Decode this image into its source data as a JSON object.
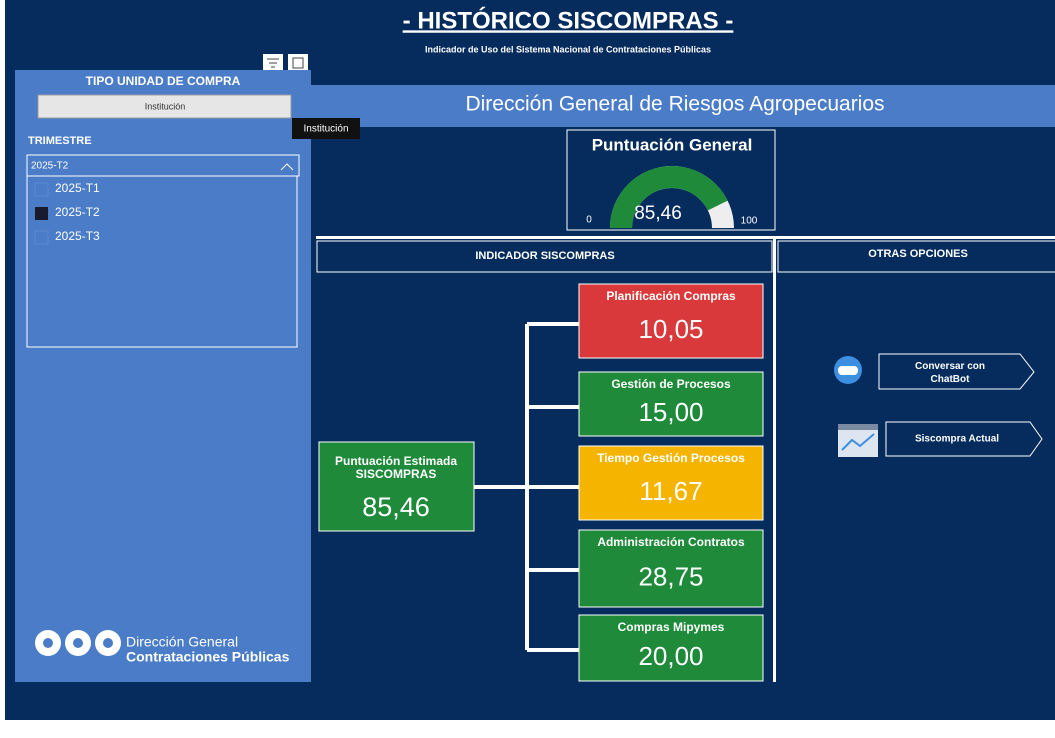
{
  "header": {
    "title": "- HISTÓRICO SISCOMPRAS -",
    "subtitle": "Indicador de Uso del Sistema Nacional de Contrataciones Públicas"
  },
  "sidebar": {
    "unit_label": "TIPO UNIDAD DE COMPRA",
    "unit_button": "Institución",
    "tooltip": "Institución",
    "quarter_label": "TRIMESTRE",
    "quarter_selected": "2025-T2",
    "quarter_options": [
      "2025-T1",
      "2025-T2",
      "2025-T3"
    ],
    "quarter_checked": 1,
    "logo_line1": "Dirección General",
    "logo_line2": "Contrataciones Públicas"
  },
  "banner": "Dirección General de Riesgos Agropecuarios",
  "gauge": {
    "title": "Puntuación General",
    "min": 0,
    "max": 100,
    "value": 85.46,
    "value_label": "85,46",
    "color": "#1e8a3a"
  },
  "sections": {
    "indicator": "INDICADOR SISCOMPRAS",
    "options": "OTRAS OPCIONES"
  },
  "estimate": {
    "label": "Puntuación Estimada SISCOMPRAS",
    "value": "85,46"
  },
  "cards": [
    {
      "label": "Planificación Compras",
      "value": "10,05",
      "color": "#d9393a"
    },
    {
      "label": "Gestión de Procesos",
      "value": "15,00",
      "color": "#1e8a3a"
    },
    {
      "label": "Tiempo Gestión Procesos",
      "value": "11,67",
      "color": "#f5b400"
    },
    {
      "label": "Administración Contratos",
      "value": "28,75",
      "color": "#1e8a3a"
    },
    {
      "label": "Compras Mipymes",
      "value": "20,00",
      "color": "#1e8a3a"
    }
  ],
  "buttons": [
    "Conversar con ChatBot",
    "Siscompra Actual"
  ]
}
